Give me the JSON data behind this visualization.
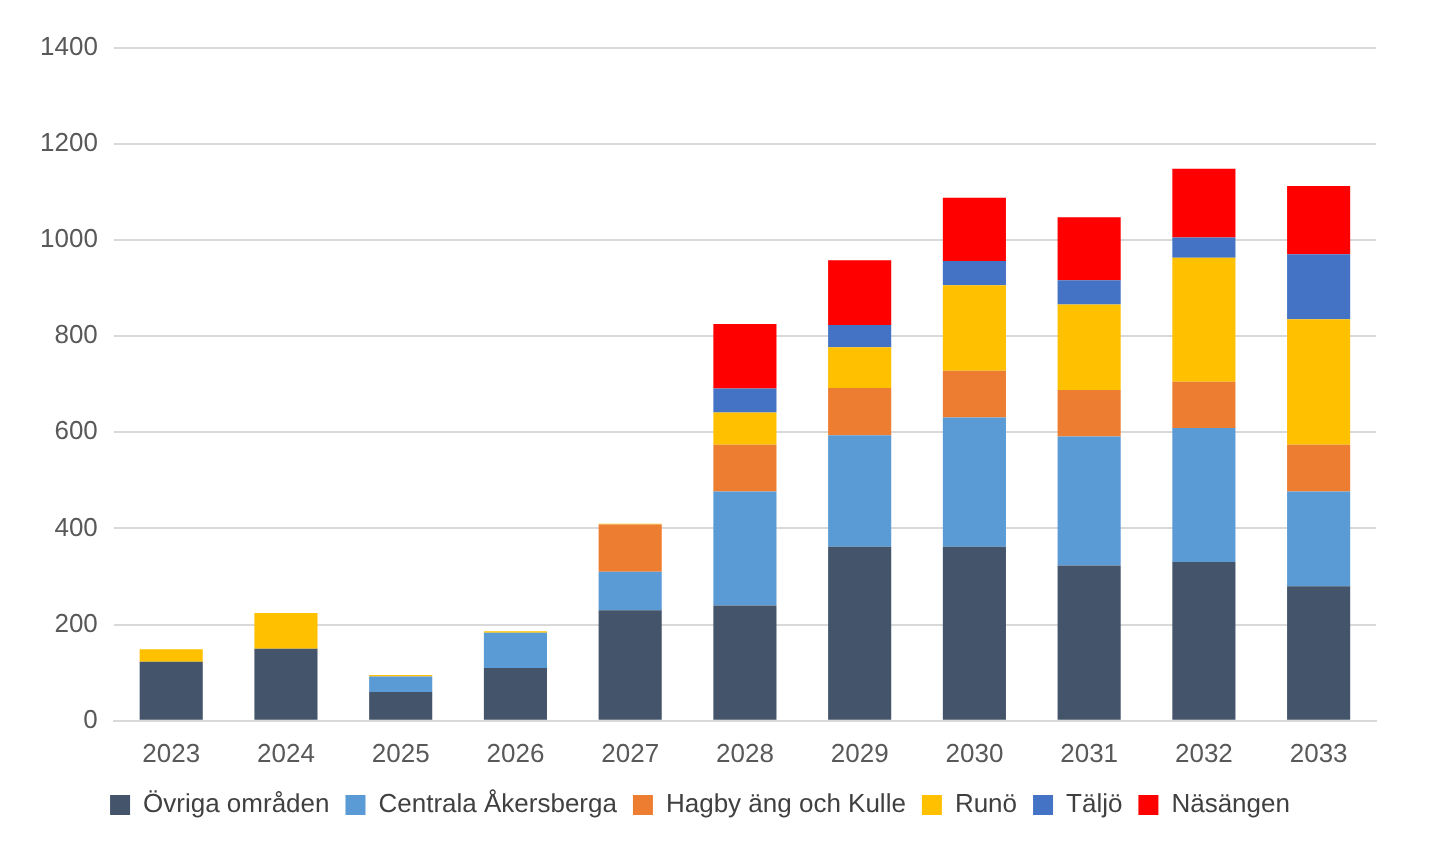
{
  "chart_data": {
    "type": "bar",
    "stacked": true,
    "categories": [
      "2023",
      "2024",
      "2025",
      "2026",
      "2027",
      "2028",
      "2029",
      "2030",
      "2031",
      "2032",
      "2033"
    ],
    "series": [
      {
        "name": "Övriga områden",
        "color": "#44546a",
        "values": [
          123,
          150,
          60,
          110,
          230,
          240,
          362,
          362,
          323,
          330,
          280
        ]
      },
      {
        "name": "Centrala Åkersberga",
        "color": "#5b9bd5",
        "values": [
          0,
          0,
          32,
          73,
          80,
          237,
          232,
          269,
          268,
          279,
          197
        ]
      },
      {
        "name": "Hagby äng och Kulle",
        "color": "#ed7d31",
        "values": [
          0,
          0,
          0,
          0,
          98,
          97,
          98,
          97,
          97,
          96,
          97
        ]
      },
      {
        "name": "Runö",
        "color": "#ffc000",
        "values": [
          26,
          74,
          3,
          3,
          2,
          67,
          85,
          178,
          178,
          258,
          261
        ]
      },
      {
        "name": "Täljö",
        "color": "#4472c4",
        "values": [
          0,
          0,
          0,
          0,
          0,
          50,
          46,
          50,
          50,
          42,
          135
        ]
      },
      {
        "name": "Näsängen",
        "color": "#ff0000",
        "values": [
          0,
          0,
          0,
          0,
          0,
          134,
          135,
          132,
          131,
          143,
          142
        ]
      }
    ],
    "ylim": [
      0,
      1400
    ],
    "yticks": [
      0,
      200,
      400,
      600,
      800,
      1000,
      1200,
      1400
    ],
    "grid": "y",
    "legend": "bottom"
  }
}
